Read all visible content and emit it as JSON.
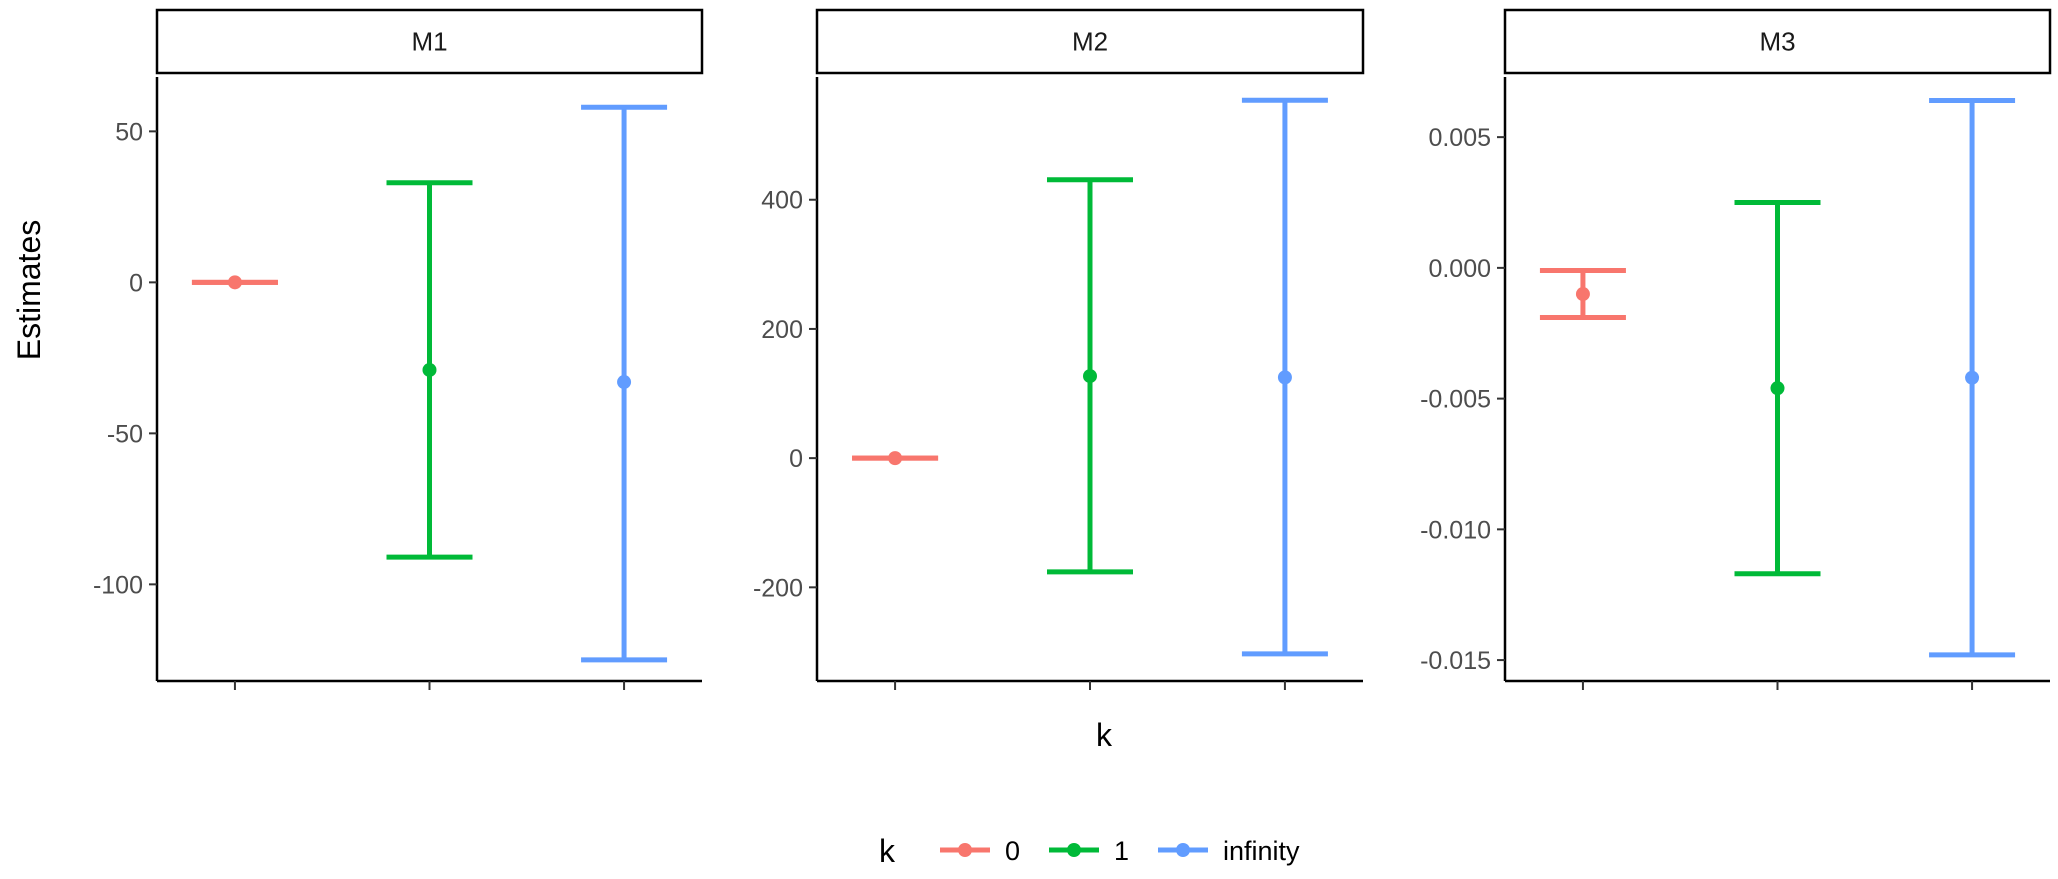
{
  "chart_data": {
    "type": "errorbar",
    "xlabel": "k",
    "ylabel": "Estimates",
    "legend": {
      "title": "k",
      "position": "bottom",
      "entries": [
        {
          "label": "0",
          "color": "#F8766D"
        },
        {
          "label": "1",
          "color": "#00BA38"
        },
        {
          "label": "infinity",
          "color": "#619CFF"
        }
      ]
    },
    "grid": false,
    "categories": [
      "0",
      "1",
      "infinity"
    ],
    "panels": [
      {
        "name": "M1",
        "ylim": [
          -132,
          68
        ],
        "yticks": [
          {
            "value": 50,
            "label": "50"
          },
          {
            "value": 0,
            "label": "0"
          },
          {
            "value": -50,
            "label": "-50"
          },
          {
            "value": -100,
            "label": "-100"
          }
        ],
        "points": [
          {
            "category": "0",
            "estimate": 0.0,
            "lower": 0.0,
            "upper": 0.0
          },
          {
            "category": "1",
            "estimate": -29,
            "lower": -91,
            "upper": 33
          },
          {
            "category": "infinity",
            "estimate": -33,
            "lower": -125,
            "upper": 58
          }
        ]
      },
      {
        "name": "M2",
        "ylim": [
          -345,
          590
        ],
        "yticks": [
          {
            "value": 400,
            "label": "400"
          },
          {
            "value": 200,
            "label": "200"
          },
          {
            "value": 0,
            "label": "0"
          },
          {
            "value": -200,
            "label": "-200"
          }
        ],
        "points": [
          {
            "category": "0",
            "estimate": 0.0,
            "lower": 0.0,
            "upper": 0.0
          },
          {
            "category": "1",
            "estimate": 127,
            "lower": -176,
            "upper": 431
          },
          {
            "category": "infinity",
            "estimate": 125,
            "lower": -303,
            "upper": 554
          }
        ]
      },
      {
        "name": "M3",
        "ylim": [
          -0.0158,
          0.0073
        ],
        "yticks": [
          {
            "value": 0.005,
            "label": "0.005"
          },
          {
            "value": 0.0,
            "label": "0.000"
          },
          {
            "value": -0.005,
            "label": "-0.005"
          },
          {
            "value": -0.01,
            "label": "-0.010"
          },
          {
            "value": -0.015,
            "label": "-0.015"
          }
        ],
        "points": [
          {
            "category": "0",
            "estimate": -0.001,
            "lower": -0.0019,
            "upper": -0.0001
          },
          {
            "category": "1",
            "estimate": -0.0046,
            "lower": -0.0117,
            "upper": 0.0025
          },
          {
            "category": "infinity",
            "estimate": -0.0042,
            "lower": -0.0148,
            "upper": 0.0064
          }
        ]
      }
    ]
  }
}
